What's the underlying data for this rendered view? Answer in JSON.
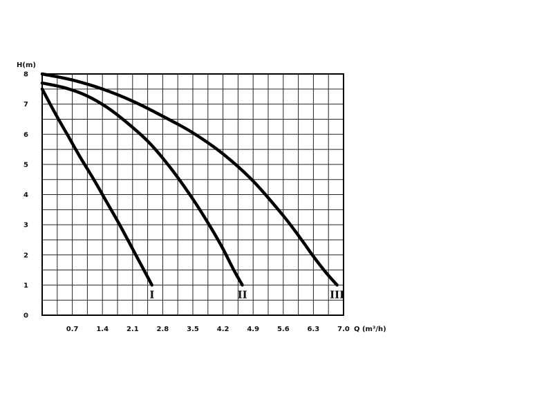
{
  "chart_data": {
    "type": "line",
    "title": "",
    "xlabel": "Q (m³/h)",
    "ylabel": "H(m)",
    "xlim": [
      0,
      7.0
    ],
    "ylim": [
      0,
      8
    ],
    "x_ticks": [
      "0.7",
      "1.4",
      "2.1",
      "2.8",
      "3.5",
      "4.2",
      "4.9",
      "5.6",
      "6.3",
      "7.0"
    ],
    "y_ticks": [
      "0",
      "1",
      "2",
      "3",
      "4",
      "5",
      "6",
      "7",
      "8"
    ],
    "grid": true,
    "series": [
      {
        "name": "I",
        "x": [
          0.0,
          0.3,
          0.6,
          0.9,
          1.2,
          1.5,
          1.8,
          2.1,
          2.4,
          2.55
        ],
        "y": [
          7.5,
          6.7,
          5.95,
          5.2,
          4.5,
          3.75,
          3.0,
          2.2,
          1.4,
          1.0
        ]
      },
      {
        "name": "II",
        "x": [
          0.0,
          0.5,
          1.0,
          1.5,
          2.0,
          2.5,
          3.0,
          3.5,
          3.9,
          4.2,
          4.45,
          4.65
        ],
        "y": [
          7.7,
          7.55,
          7.3,
          6.9,
          6.35,
          5.7,
          4.85,
          3.85,
          2.95,
          2.2,
          1.5,
          1.0
        ]
      },
      {
        "name": "III",
        "x": [
          0.0,
          0.7,
          1.4,
          2.1,
          2.8,
          3.5,
          4.2,
          4.9,
          5.6,
          6.0,
          6.3,
          6.6,
          6.85
        ],
        "y": [
          8.0,
          7.8,
          7.5,
          7.1,
          6.6,
          6.05,
          5.35,
          4.45,
          3.3,
          2.55,
          1.95,
          1.4,
          1.0
        ]
      }
    ]
  }
}
